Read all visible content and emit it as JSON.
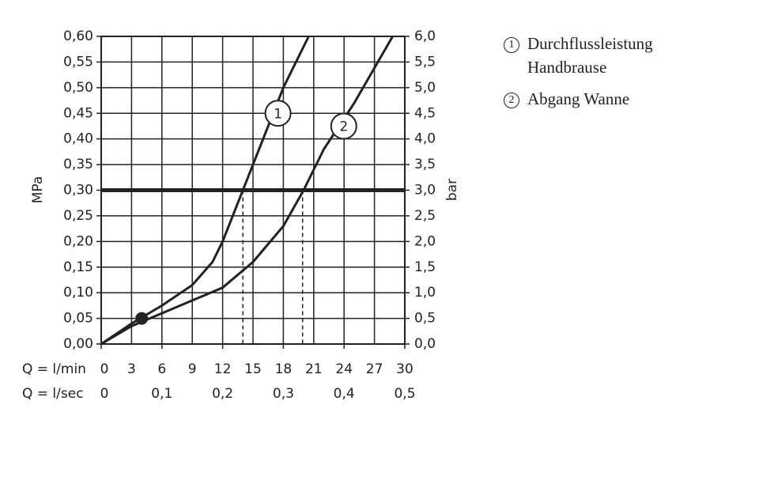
{
  "chart_data": {
    "type": "line",
    "xlabel": "Q = l/min",
    "x2label": "Q = l/sec",
    "ylabel": "MPa",
    "y2label": "bar",
    "xlim": [
      0,
      30
    ],
    "xticks": [
      0,
      3,
      6,
      9,
      12,
      15,
      18,
      21,
      24,
      27,
      30
    ],
    "x2lim": [
      0,
      0.5
    ],
    "x2ticks": [
      0,
      {
        "value": 0.1,
        "label": "0,1"
      },
      {
        "value": 0.2,
        "label": "0,2"
      },
      {
        "value": 0.3,
        "label": "0,3"
      },
      {
        "value": 0.4,
        "label": "0,4"
      },
      {
        "value": 0.5,
        "label": "0,5"
      }
    ],
    "ylim": [
      0,
      0.6
    ],
    "yticks": [
      {
        "value": 0,
        "label": "0,00"
      },
      {
        "value": 0.05,
        "label": "0,05"
      },
      {
        "value": 0.1,
        "label": "0,10"
      },
      {
        "value": 0.15,
        "label": "0,15"
      },
      {
        "value": 0.2,
        "label": "0,20"
      },
      {
        "value": 0.25,
        "label": "0,25"
      },
      {
        "value": 0.3,
        "label": "0,30"
      },
      {
        "value": 0.35,
        "label": "0,35"
      },
      {
        "value": 0.4,
        "label": "0,40"
      },
      {
        "value": 0.45,
        "label": "0,45"
      },
      {
        "value": 0.5,
        "label": "0,50"
      },
      {
        "value": 0.55,
        "label": "0,55"
      },
      {
        "value": 0.6,
        "label": "0,60"
      }
    ],
    "y2lim": [
      0,
      6
    ],
    "y2ticks": [
      {
        "value": 0,
        "label": "0,0"
      },
      {
        "value": 0.5,
        "label": "0,5"
      },
      {
        "value": 1,
        "label": "1,0"
      },
      {
        "value": 1.5,
        "label": "1,5"
      },
      {
        "value": 2,
        "label": "2,0"
      },
      {
        "value": 2.5,
        "label": "2,5"
      },
      {
        "value": 3,
        "label": "3,0"
      },
      {
        "value": 3.5,
        "label": "3,5"
      },
      {
        "value": 4,
        "label": "4,0"
      },
      {
        "value": 4.5,
        "label": "4,5"
      },
      {
        "value": 5,
        "label": "5,0"
      },
      {
        "value": 5.5,
        "label": "5,5"
      },
      {
        "value": 6,
        "label": "6,0"
      }
    ],
    "grid": true,
    "reference_line": 0.3,
    "markers_x": [
      14,
      19.9
    ],
    "point": {
      "x": 4,
      "y": 0.05
    },
    "series": [
      {
        "name": "Durchflussleistung Handbrause",
        "label": "1",
        "color": "#222222",
        "x": [
          0,
          3,
          6,
          9,
          11,
          12,
          14,
          16,
          18,
          20.5
        ],
        "values": [
          0,
          0.04,
          0.075,
          0.115,
          0.16,
          0.2,
          0.3,
          0.4,
          0.5,
          0.6
        ]
      },
      {
        "name": "Abgang Wanne",
        "label": "2",
        "color": "#222222",
        "x": [
          0,
          3,
          6,
          9,
          12,
          15,
          18,
          20,
          22,
          25,
          28.8
        ],
        "values": [
          0,
          0.035,
          0.06,
          0.085,
          0.11,
          0.16,
          0.23,
          0.3,
          0.38,
          0.47,
          0.6
        ]
      }
    ]
  }
}
